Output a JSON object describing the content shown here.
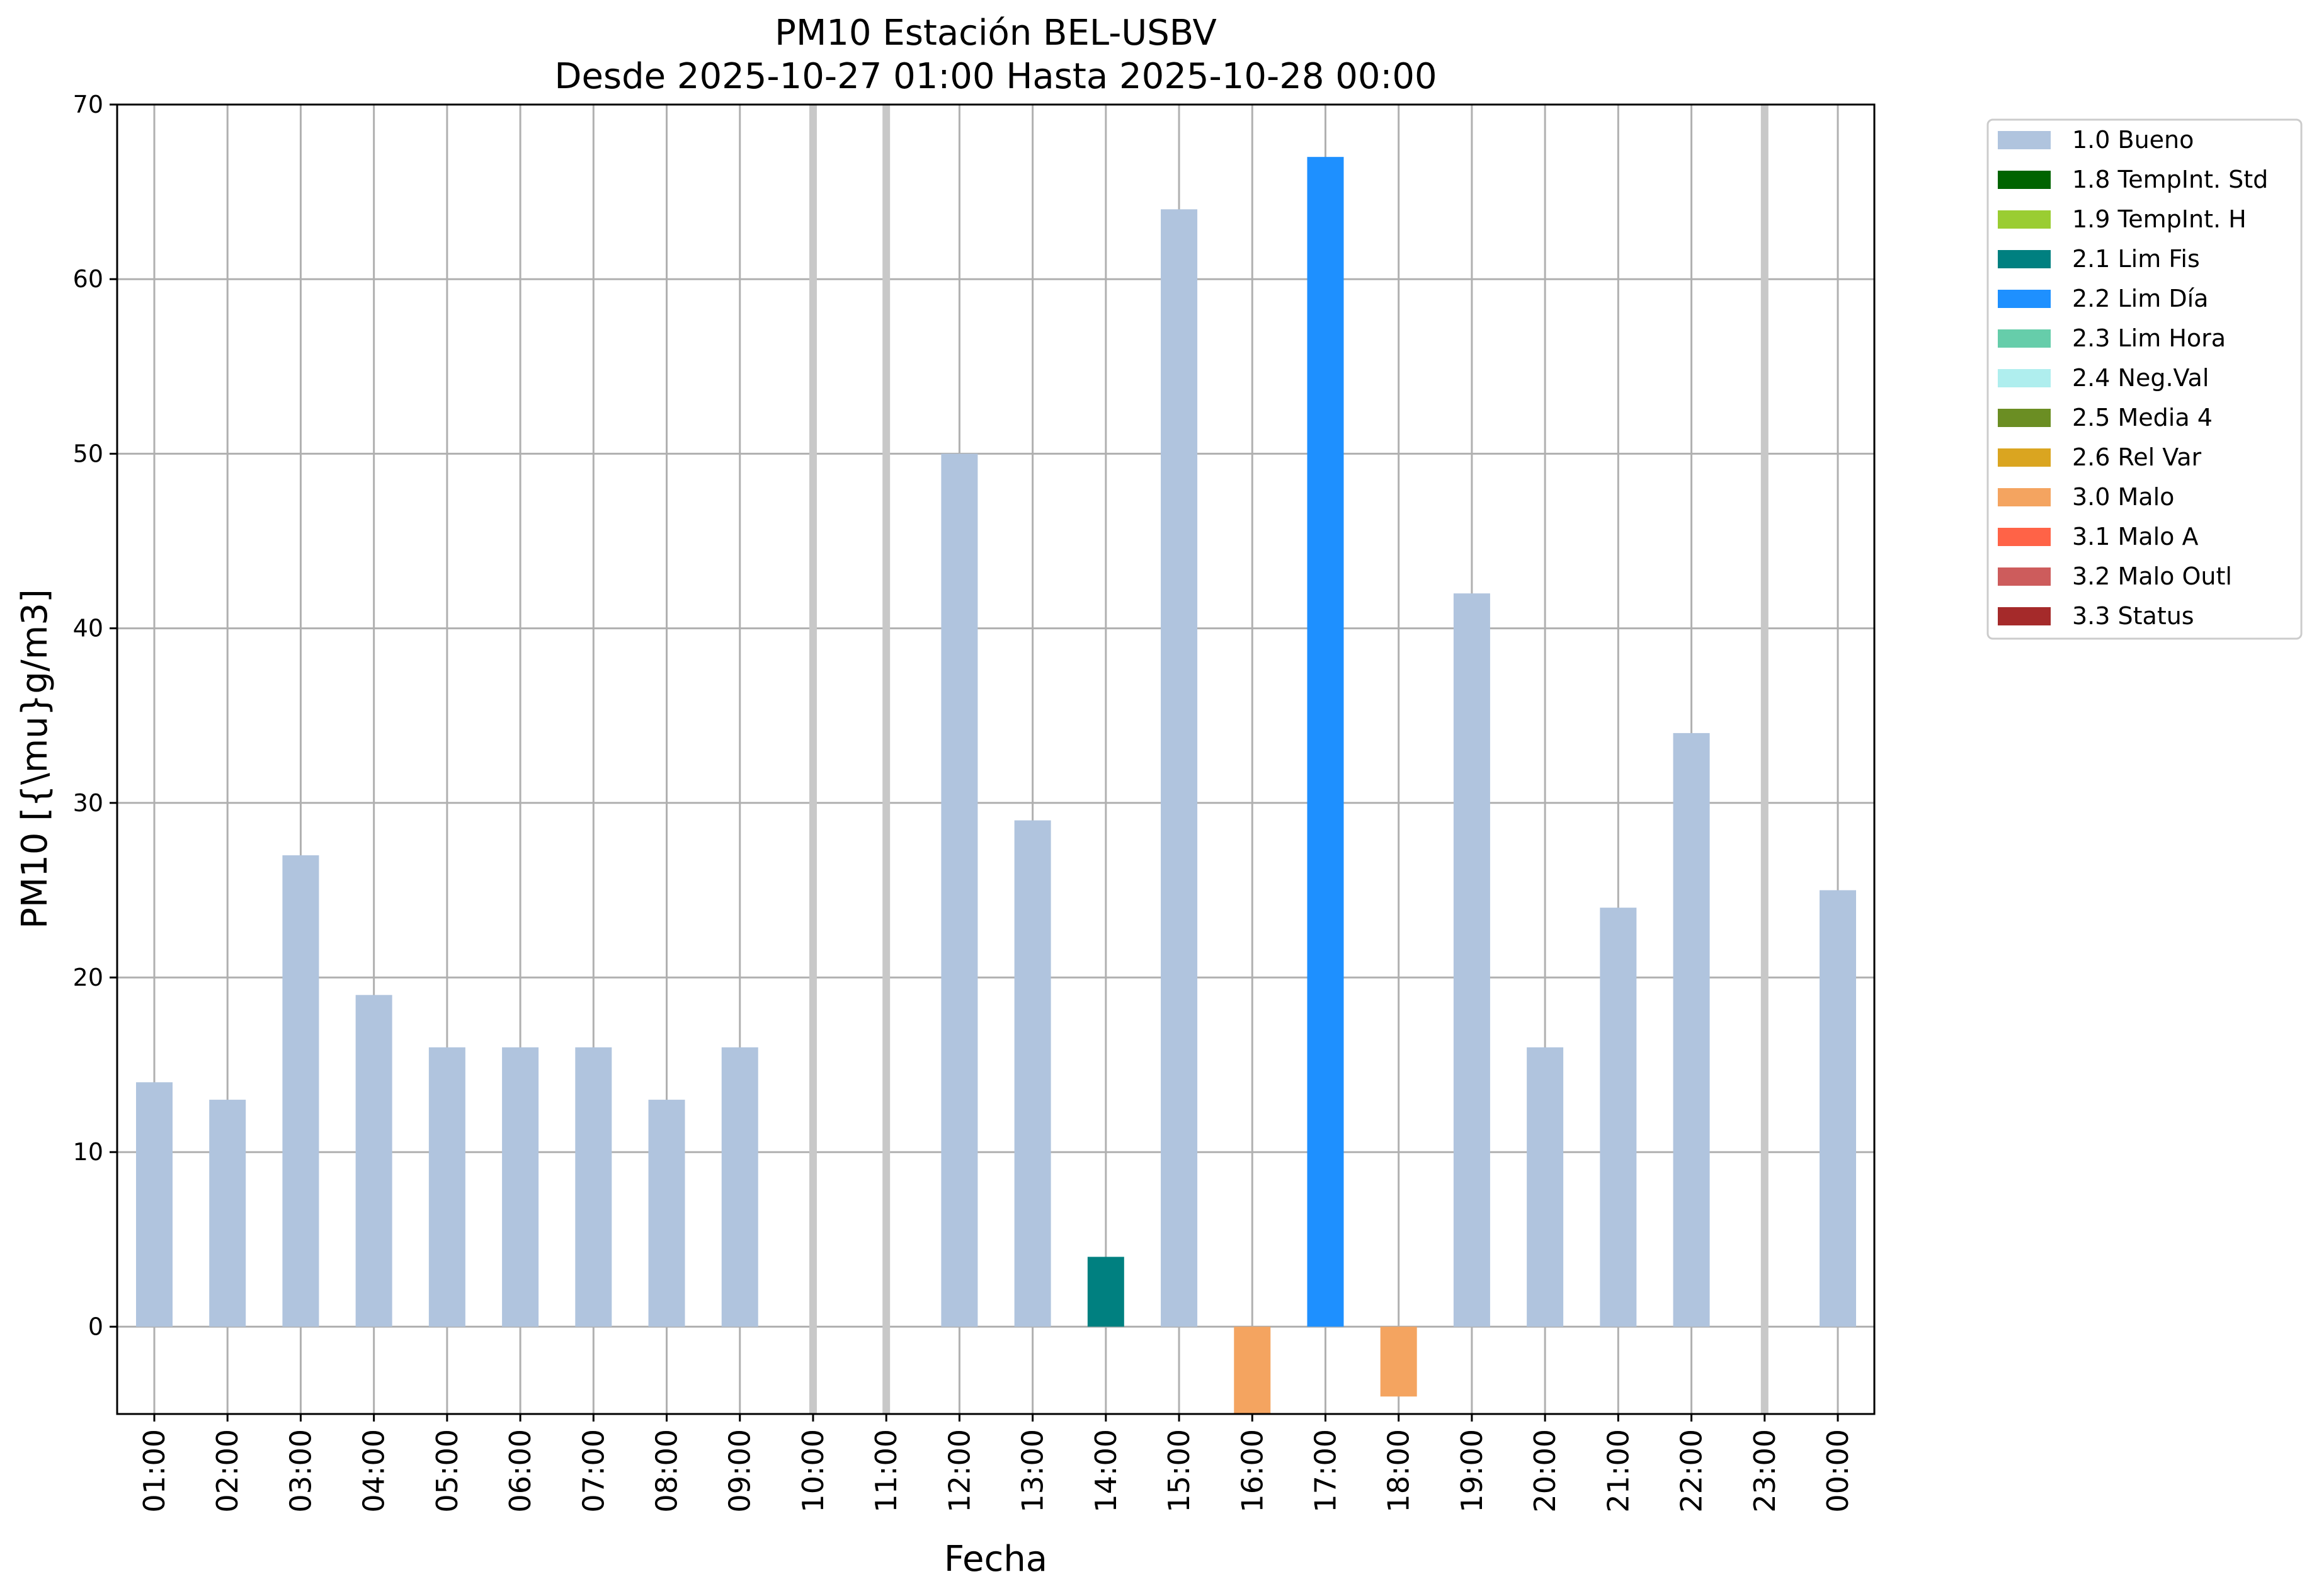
{
  "chart_data": {
    "type": "bar",
    "title": "PM10 Estación BEL-USBV",
    "subtitle": "Desde 2025-10-27 01:00 Hasta 2025-10-28 00:00",
    "xlabel": "Fecha",
    "ylabel": "PM10 [{\\mu}g/m3]",
    "ylim": [
      -5,
      70
    ],
    "yticks": [
      0,
      10,
      20,
      30,
      40,
      50,
      60,
      70
    ],
    "grid": true,
    "legend_position": "outside-right",
    "categories": [
      "01:00",
      "02:00",
      "03:00",
      "04:00",
      "05:00",
      "06:00",
      "07:00",
      "08:00",
      "09:00",
      "10:00",
      "11:00",
      "12:00",
      "13:00",
      "14:00",
      "15:00",
      "16:00",
      "17:00",
      "18:00",
      "19:00",
      "20:00",
      "21:00",
      "22:00",
      "23:00",
      "00:00"
    ],
    "values": [
      14,
      13,
      27,
      19,
      16,
      16,
      16,
      13,
      16,
      null,
      null,
      50,
      29,
      4,
      64,
      -5,
      67,
      -4,
      42,
      16,
      24,
      34,
      null,
      25
    ],
    "flags": [
      "1.0",
      "1.0",
      "1.0",
      "1.0",
      "1.0",
      "1.0",
      "1.0",
      "1.0",
      "1.0",
      null,
      null,
      "1.0",
      "1.0",
      "2.1",
      "1.0",
      "3.0",
      "2.2",
      "3.0",
      "1.0",
      "1.0",
      "1.0",
      "1.0",
      null,
      "1.0"
    ],
    "missing": [
      "10:00",
      "11:00",
      "23:00"
    ],
    "legend": [
      {
        "code": "1.0",
        "label": "1.0 Bueno",
        "color": "#b0c4de"
      },
      {
        "code": "1.8",
        "label": "1.8 TempInt. Std",
        "color": "#006400"
      },
      {
        "code": "1.9",
        "label": "1.9 TempInt. H",
        "color": "#9acd32"
      },
      {
        "code": "2.1",
        "label": "2.1 Lim Fis",
        "color": "#008080"
      },
      {
        "code": "2.2",
        "label": "2.2 Lim Día",
        "color": "#1e90ff"
      },
      {
        "code": "2.3",
        "label": "2.3 Lim Hora",
        "color": "#66cdaa"
      },
      {
        "code": "2.4",
        "label": "2.4 Neg.Val",
        "color": "#afeeee"
      },
      {
        "code": "2.5",
        "label": "2.5 Media 4",
        "color": "#6b8e23"
      },
      {
        "code": "2.6",
        "label": "2.6 Rel Var",
        "color": "#daa520"
      },
      {
        "code": "3.0",
        "label": "3.0 Malo",
        "color": "#f4a460"
      },
      {
        "code": "3.1",
        "label": "3.1 Malo A",
        "color": "#ff6347"
      },
      {
        "code": "3.2",
        "label": "3.2 Malo Outl",
        "color": "#cd5c5c"
      },
      {
        "code": "3.3",
        "label": "3.3 Status",
        "color": "#a52a2a"
      }
    ]
  }
}
